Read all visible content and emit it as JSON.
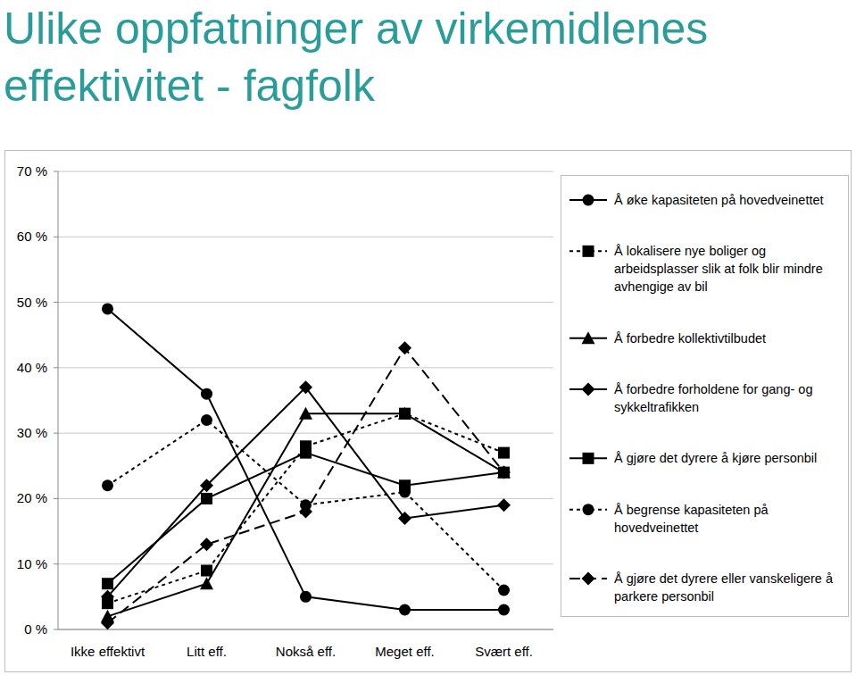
{
  "chart_data": {
    "type": "line",
    "title": "Ulike oppfatninger av virkemidlenes effektivitet - fagfolk",
    "categories": [
      "Ikke effektivt",
      "Litt eff.",
      "Nokså eff.",
      "Meget eff.",
      "Svært eff."
    ],
    "ylim": [
      0,
      70
    ],
    "yticks": [
      {
        "value": 0,
        "label": "0 %"
      },
      {
        "value": 10,
        "label": "10 %"
      },
      {
        "value": 20,
        "label": "20 %"
      },
      {
        "value": 30,
        "label": "30 %"
      },
      {
        "value": 40,
        "label": "40 %"
      },
      {
        "value": 50,
        "label": "50 %"
      },
      {
        "value": 60,
        "label": "60 %"
      },
      {
        "value": 70,
        "label": "70 %"
      }
    ],
    "grid": true,
    "legend": "right",
    "series": [
      {
        "name": "Å øke kapasiteten på hovedveinettet",
        "color": "#000000",
        "marker": "circle",
        "line_style": "solid",
        "values": [
          49,
          36,
          5,
          3,
          3
        ]
      },
      {
        "name": "Å lokalisere nye boliger og arbeidsplasser slik at folk blir mindre avhengige av bil",
        "color": "#000000",
        "marker": "square",
        "line_style": "dashed",
        "values": [
          4,
          9,
          28,
          33,
          27
        ]
      },
      {
        "name": "Å forbedre kollektivtilbudet",
        "color": "#000000",
        "marker": "triangle",
        "line_style": "solid",
        "values": [
          2,
          7,
          33,
          33,
          24
        ]
      },
      {
        "name": "Å forbedre forholdene for gang- og sykkeltrafikken",
        "color": "#000000",
        "marker": "diamond",
        "line_style": "solid",
        "values": [
          5,
          22,
          37,
          17,
          19
        ]
      },
      {
        "name": "Å gjøre det dyrere å kjøre personbil",
        "color": "#000000",
        "marker": "square",
        "line_style": "solid",
        "values": [
          7,
          20,
          27,
          22,
          24
        ]
      },
      {
        "name": "Å begrense kapasiteten på hovedveinettet",
        "color": "#000000",
        "marker": "circle",
        "line_style": "dashed",
        "values": [
          22,
          32,
          19,
          21,
          6
        ]
      },
      {
        "name": "Å gjøre det dyrere eller vanskeligere å parkere personbil",
        "color": "#000000",
        "marker": "diamond",
        "line_style": "long-dash",
        "values": [
          1,
          13,
          18,
          43,
          24
        ]
      }
    ]
  }
}
